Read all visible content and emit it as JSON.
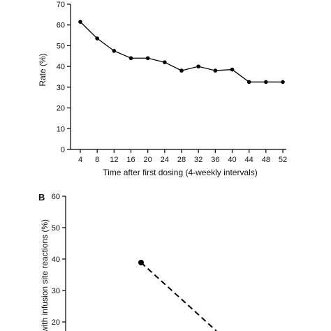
{
  "chart_data": [
    {
      "type": "line",
      "title": "",
      "xlabel": "Time after first dosing (4-weekly intervals)",
      "ylabel": "Rate (%)",
      "x": [
        4,
        8,
        12,
        16,
        20,
        24,
        28,
        32,
        36,
        40,
        44,
        48,
        52
      ],
      "values": [
        61.5,
        53.5,
        47.5,
        44,
        44,
        42,
        38,
        40,
        38,
        38.5,
        32.5,
        32.5,
        32.5
      ],
      "xticks": [
        "4",
        "8",
        "12",
        "16",
        "20",
        "24",
        "28",
        "32",
        "36",
        "40",
        "44",
        "48",
        "52"
      ],
      "yticks": [
        "0",
        "10",
        "20",
        "30",
        "40",
        "50",
        "60",
        "70"
      ],
      "xlim": [
        4,
        52
      ],
      "ylim": [
        0,
        70
      ],
      "grid": false,
      "line_color": "#000000"
    },
    {
      "type": "line",
      "panel_label": "B",
      "title": "",
      "xlabel": "",
      "ylabel": "with infusion site reactions (%)",
      "yticks": [
        "20",
        "30",
        "40",
        "50",
        "60"
      ],
      "ylim": [
        15,
        60
      ],
      "grid": false,
      "line_style": "dashed",
      "line_color": "#000000"
    }
  ]
}
